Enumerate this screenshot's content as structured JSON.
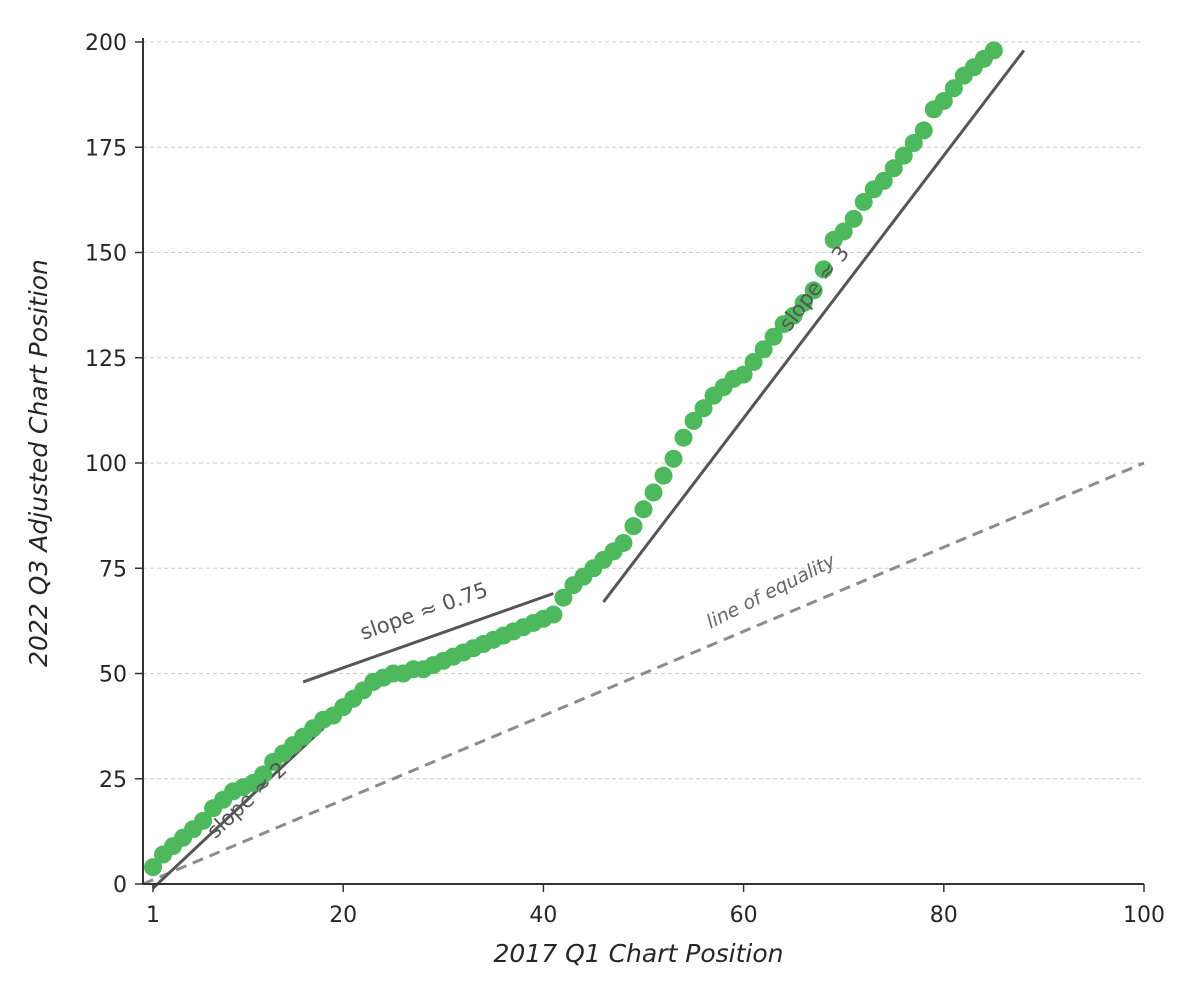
{
  "chart_data": {
    "type": "scatter",
    "xlabel": "2017 Q1 Chart Position",
    "ylabel": "2022 Q3 Adjusted Chart Position",
    "xlim": [
      0,
      100
    ],
    "ylim": [
      0,
      200
    ],
    "x_ticks": [
      1,
      20,
      40,
      60,
      80,
      100
    ],
    "x_tick_labels": [
      "1",
      "20",
      "40",
      "60",
      "80",
      "100"
    ],
    "y_ticks": [
      0,
      25,
      50,
      75,
      100,
      125,
      150,
      175,
      200
    ],
    "y_tick_labels": [
      "0",
      "25",
      "50",
      "75",
      "100",
      "125",
      "150",
      "175",
      "200"
    ],
    "grid": "horizontal dashed",
    "colors": {
      "points": "#4db85c",
      "fit_lines": "#555555",
      "equality": "#8c8c8c",
      "axes": "#333333",
      "grid": "#cccccc"
    },
    "series": [
      {
        "x": [
          1,
          2,
          3,
          4,
          5,
          6,
          7,
          8,
          9,
          10,
          11,
          12,
          13,
          14,
          15,
          16,
          17,
          18,
          19,
          20,
          21,
          22,
          23,
          24,
          25,
          26,
          27,
          28,
          29,
          30,
          31,
          32,
          33,
          34,
          35,
          36,
          37,
          38,
          39,
          40,
          41,
          42,
          43,
          44,
          45,
          46,
          47,
          48,
          49,
          50,
          51,
          52,
          53,
          54,
          55,
          56,
          57,
          58,
          59,
          60,
          61,
          62,
          63,
          64,
          65,
          66,
          67,
          68,
          69,
          70,
          71,
          72,
          73,
          74,
          75,
          76,
          77,
          78,
          79,
          80,
          81,
          82,
          83,
          84,
          85
        ],
        "y": [
          4,
          7,
          9,
          11,
          13,
          15,
          18,
          20,
          22,
          23,
          24,
          26,
          29,
          31,
          33,
          35,
          37,
          39,
          40,
          42,
          44,
          46,
          48,
          49,
          50,
          50,
          51,
          51,
          52,
          53,
          54,
          55,
          56,
          57,
          58,
          59,
          60,
          61,
          62,
          63,
          64,
          68,
          71,
          73,
          75,
          77,
          79,
          81,
          85,
          89,
          93,
          97,
          101,
          106,
          110,
          113,
          116,
          118,
          120,
          121,
          124,
          127,
          130,
          133,
          135,
          138,
          141,
          146,
          153,
          155,
          158,
          162,
          165,
          167,
          170,
          173,
          176,
          179,
          184,
          186,
          189,
          192,
          194,
          196,
          198
        ]
      }
    ],
    "annotations": {
      "fit_lines": [
        {
          "label": "slope ≈ 2",
          "x1": 1,
          "y1": -1,
          "x2": 18,
          "y2": 37
        },
        {
          "label": "slope ≈ 0.75",
          "x1": 16,
          "y1": 48,
          "x2": 41,
          "y2": 69
        },
        {
          "label": "slope ≈ 3",
          "x1": 46,
          "y1": 67,
          "x2": 88,
          "y2": 198
        }
      ],
      "equality": {
        "label": "line of equality",
        "x1": 0,
        "y1": 0,
        "x2": 100,
        "y2": 100
      }
    }
  }
}
